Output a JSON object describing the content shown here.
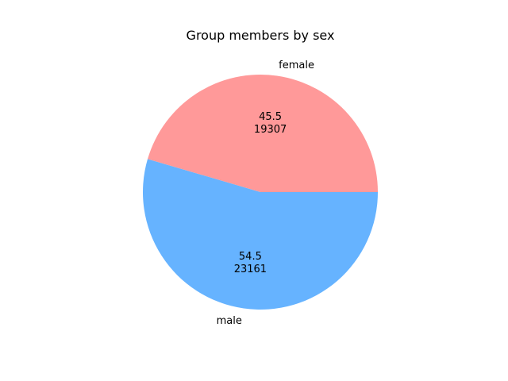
{
  "chart_data": {
    "type": "pie",
    "title": "Group members by sex",
    "slices": [
      {
        "label": "female",
        "value": 19307,
        "percent": "45.5",
        "color": "#ff9999"
      },
      {
        "label": "male",
        "value": 23161,
        "percent": "54.5",
        "color": "#66b3ff"
      }
    ],
    "start_angle_deg": 0,
    "direction": "counterclockwise",
    "legend": "none"
  }
}
